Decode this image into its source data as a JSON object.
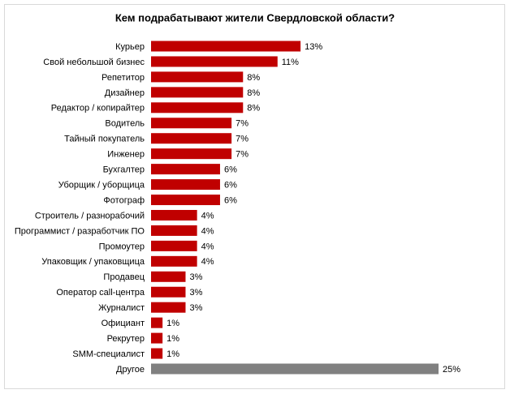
{
  "chart_data": {
    "type": "bar",
    "orientation": "horizontal",
    "title": "Кем подрабатывают жители Свердловской области?",
    "categories": [
      "Курьер",
      "Свой небольшой бизнес",
      "Репетитор",
      "Дизайнер",
      "Редактор / копирайтер",
      "Водитель",
      "Тайный покупатель",
      "Инженер",
      "Бухгалтер",
      "Уборщик / уборщица",
      "Фотограф",
      "Строитель / разнорабочий",
      "Программист / разработчик ПО",
      "Промоутер",
      "Упаковщик / упаковщица",
      "Продавец",
      "Оператор call-центра",
      "Журналист",
      "Официант",
      "Рекрутер",
      "SMM-специалист",
      "Другое"
    ],
    "values": [
      13,
      11,
      8,
      8,
      8,
      7,
      7,
      7,
      6,
      6,
      6,
      4,
      4,
      4,
      4,
      3,
      3,
      3,
      1,
      1,
      1,
      25
    ],
    "value_labels": [
      "13%",
      "11%",
      "8%",
      "8%",
      "8%",
      "7%",
      "7%",
      "7%",
      "6%",
      "6%",
      "6%",
      "4%",
      "4%",
      "4%",
      "4%",
      "3%",
      "3%",
      "3%",
      "1%",
      "1%",
      "1%",
      "25%"
    ],
    "colors": [
      "#c00000",
      "#c00000",
      "#c00000",
      "#c00000",
      "#c00000",
      "#c00000",
      "#c00000",
      "#c00000",
      "#c00000",
      "#c00000",
      "#c00000",
      "#c00000",
      "#c00000",
      "#c00000",
      "#c00000",
      "#c00000",
      "#c00000",
      "#c00000",
      "#c00000",
      "#c00000",
      "#c00000",
      "#808080"
    ]
  }
}
